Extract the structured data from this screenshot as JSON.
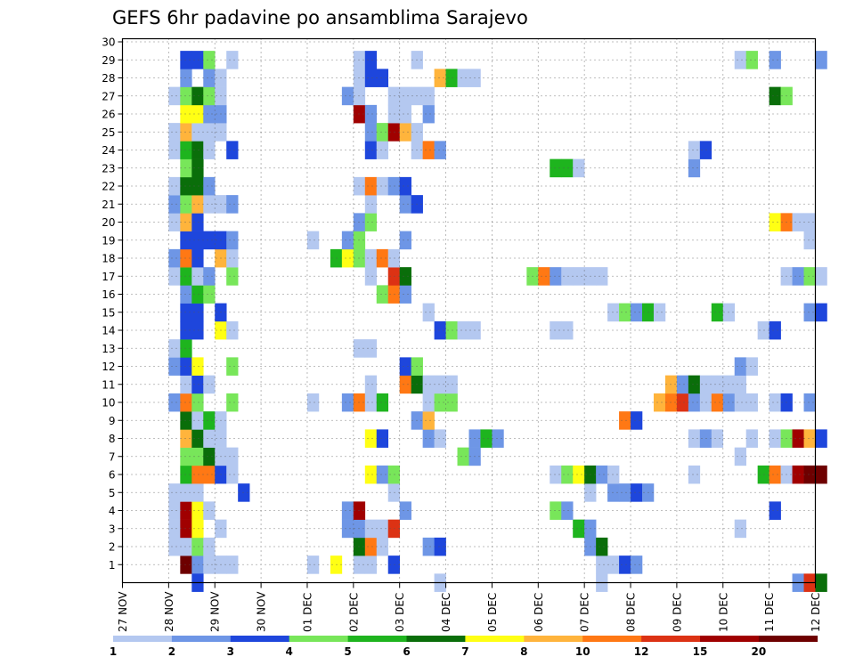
{
  "chart_data": {
    "type": "heatmap",
    "title": "GEFS 6hr padavine po ansamblima Sarajevo",
    "xlabel": "",
    "ylabel": "",
    "x_ticks": [
      "27 NOV",
      "28 NOV",
      "29 NOV",
      "30 NOV",
      "01 DEC",
      "02 DEC",
      "03 DEC",
      "04 DEC",
      "05 DEC",
      "06 DEC",
      "07 DEC",
      "08 DEC",
      "09 DEC",
      "10 DEC",
      "11 DEC",
      "12 DEC"
    ],
    "y_ticks": [
      1,
      2,
      3,
      4,
      5,
      6,
      7,
      8,
      9,
      10,
      11,
      12,
      13,
      14,
      15,
      16,
      17,
      18,
      19,
      20,
      21,
      22,
      23,
      24,
      25,
      26,
      27,
      28,
      29,
      30
    ],
    "x_unit": "6-hour step (0 = 27 NOV 00Z)",
    "x_range": [
      0,
      60
    ],
    "y_range": [
      0,
      31
    ],
    "grid": true,
    "colorbar": {
      "labels": [
        "1",
        "2",
        "3",
        "4",
        "5",
        "6",
        "7",
        "8",
        "10",
        "12",
        "15",
        "20"
      ],
      "colors": [
        "#b4c8f0",
        "#6e96e6",
        "#1e46dc",
        "#78e65a",
        "#1eb41e",
        "#0a6e0a",
        "#ffff14",
        "#ffb43c",
        "#ff7814",
        "#dc3214",
        "#a00000",
        "#6e0000"
      ]
    },
    "cells": [
      [
        5,
        1,
        11
      ],
      [
        6,
        1,
        1
      ],
      [
        7,
        1,
        0
      ],
      [
        8,
        1,
        0
      ],
      [
        9,
        1,
        0
      ],
      [
        16,
        1,
        0
      ],
      [
        18,
        1,
        6
      ],
      [
        20,
        1,
        0
      ],
      [
        21,
        1,
        0
      ],
      [
        23,
        1,
        2
      ],
      [
        41,
        1,
        0
      ],
      [
        42,
        1,
        0
      ],
      [
        43,
        1,
        2
      ],
      [
        44,
        1,
        1
      ],
      [
        4,
        2,
        0
      ],
      [
        5,
        2,
        0
      ],
      [
        6,
        2,
        3
      ],
      [
        7,
        2,
        0
      ],
      [
        20,
        2,
        5
      ],
      [
        21,
        2,
        8
      ],
      [
        22,
        2,
        0
      ],
      [
        26,
        2,
        1
      ],
      [
        27,
        2,
        2
      ],
      [
        40,
        2,
        1
      ],
      [
        41,
        2,
        5
      ],
      [
        4,
        3,
        0
      ],
      [
        5,
        3,
        10
      ],
      [
        6,
        3,
        6
      ],
      [
        8,
        3,
        0
      ],
      [
        19,
        3,
        1
      ],
      [
        20,
        3,
        1
      ],
      [
        21,
        3,
        0
      ],
      [
        22,
        3,
        0
      ],
      [
        23,
        3,
        9
      ],
      [
        39,
        3,
        4
      ],
      [
        40,
        3,
        1
      ],
      [
        53,
        3,
        0
      ],
      [
        4,
        4,
        0
      ],
      [
        5,
        4,
        10
      ],
      [
        6,
        4,
        6
      ],
      [
        7,
        4,
        0
      ],
      [
        19,
        4,
        1
      ],
      [
        20,
        4,
        10
      ],
      [
        24,
        4,
        1
      ],
      [
        37,
        4,
        3
      ],
      [
        38,
        4,
        1
      ],
      [
        56,
        4,
        2
      ],
      [
        4,
        5,
        0
      ],
      [
        5,
        5,
        0
      ],
      [
        6,
        5,
        0
      ],
      [
        10,
        5,
        2
      ],
      [
        23,
        5,
        0
      ],
      [
        40,
        5,
        0
      ],
      [
        42,
        5,
        1
      ],
      [
        43,
        5,
        1
      ],
      [
        44,
        5,
        2
      ],
      [
        45,
        5,
        1
      ],
      [
        5,
        6,
        4
      ],
      [
        6,
        6,
        8
      ],
      [
        7,
        6,
        8
      ],
      [
        8,
        6,
        2
      ],
      [
        9,
        6,
        0
      ],
      [
        21,
        6,
        6
      ],
      [
        22,
        6,
        1
      ],
      [
        23,
        6,
        3
      ],
      [
        37,
        6,
        0
      ],
      [
        38,
        6,
        3
      ],
      [
        39,
        6,
        6
      ],
      [
        40,
        6,
        5
      ],
      [
        41,
        6,
        1
      ],
      [
        42,
        6,
        0
      ],
      [
        49,
        6,
        0
      ],
      [
        55,
        6,
        4
      ],
      [
        56,
        6,
        8
      ],
      [
        57,
        6,
        0
      ],
      [
        58,
        6,
        10
      ],
      [
        59,
        6,
        11
      ],
      [
        60,
        6,
        11
      ],
      [
        5,
        7,
        3
      ],
      [
        6,
        7,
        3
      ],
      [
        7,
        7,
        5
      ],
      [
        8,
        7,
        0
      ],
      [
        9,
        7,
        0
      ],
      [
        29,
        7,
        3
      ],
      [
        30,
        7,
        1
      ],
      [
        53,
        7,
        0
      ],
      [
        5,
        8,
        7
      ],
      [
        6,
        8,
        5
      ],
      [
        7,
        8,
        0
      ],
      [
        8,
        8,
        0
      ],
      [
        21,
        8,
        6
      ],
      [
        22,
        8,
        2
      ],
      [
        26,
        8,
        1
      ],
      [
        27,
        8,
        0
      ],
      [
        30,
        8,
        1
      ],
      [
        31,
        8,
        4
      ],
      [
        32,
        8,
        1
      ],
      [
        49,
        8,
        0
      ],
      [
        50,
        8,
        1
      ],
      [
        51,
        8,
        0
      ],
      [
        54,
        8,
        0
      ],
      [
        56,
        8,
        0
      ],
      [
        57,
        8,
        3
      ],
      [
        58,
        8,
        10
      ],
      [
        59,
        8,
        7
      ],
      [
        60,
        8,
        2
      ],
      [
        5,
        9,
        5
      ],
      [
        6,
        9,
        0
      ],
      [
        7,
        9,
        4
      ],
      [
        8,
        9,
        0
      ],
      [
        25,
        9,
        1
      ],
      [
        26,
        9,
        7
      ],
      [
        43,
        9,
        8
      ],
      [
        44,
        9,
        2
      ],
      [
        4,
        10,
        1
      ],
      [
        5,
        10,
        8
      ],
      [
        6,
        10,
        3
      ],
      [
        9,
        10,
        3
      ],
      [
        16,
        10,
        0
      ],
      [
        19,
        10,
        1
      ],
      [
        20,
        10,
        8
      ],
      [
        21,
        10,
        0
      ],
      [
        22,
        10,
        4
      ],
      [
        26,
        10,
        0
      ],
      [
        27,
        10,
        3
      ],
      [
        28,
        10,
        3
      ],
      [
        46,
        10,
        7
      ],
      [
        47,
        10,
        8
      ],
      [
        48,
        10,
        9
      ],
      [
        49,
        10,
        1
      ],
      [
        50,
        10,
        0
      ],
      [
        51,
        10,
        8
      ],
      [
        52,
        10,
        1
      ],
      [
        53,
        10,
        0
      ],
      [
        54,
        10,
        0
      ],
      [
        56,
        10,
        0
      ],
      [
        57,
        10,
        2
      ],
      [
        59,
        10,
        1
      ],
      [
        5,
        11,
        0
      ],
      [
        6,
        11,
        2
      ],
      [
        7,
        11,
        0
      ],
      [
        21,
        11,
        0
      ],
      [
        24,
        11,
        8
      ],
      [
        25,
        11,
        5
      ],
      [
        26,
        11,
        0
      ],
      [
        27,
        11,
        0
      ],
      [
        28,
        11,
        0
      ],
      [
        47,
        11,
        7
      ],
      [
        48,
        11,
        1
      ],
      [
        49,
        11,
        5
      ],
      [
        50,
        11,
        0
      ],
      [
        51,
        11,
        0
      ],
      [
        52,
        11,
        0
      ],
      [
        53,
        11,
        0
      ],
      [
        4,
        12,
        1
      ],
      [
        5,
        12,
        2
      ],
      [
        6,
        12,
        6
      ],
      [
        9,
        12,
        3
      ],
      [
        24,
        12,
        2
      ],
      [
        25,
        12,
        3
      ],
      [
        53,
        12,
        1
      ],
      [
        54,
        12,
        0
      ],
      [
        4,
        13,
        0
      ],
      [
        5,
        13,
        4
      ],
      [
        20,
        13,
        0
      ],
      [
        21,
        13,
        0
      ],
      [
        5,
        14,
        2
      ],
      [
        6,
        14,
        2
      ],
      [
        8,
        14,
        6
      ],
      [
        9,
        14,
        0
      ],
      [
        27,
        14,
        2
      ],
      [
        28,
        14,
        3
      ],
      [
        29,
        14,
        0
      ],
      [
        30,
        14,
        0
      ],
      [
        37,
        14,
        0
      ],
      [
        38,
        14,
        0
      ],
      [
        55,
        14,
        0
      ],
      [
        56,
        14,
        2
      ],
      [
        5,
        15,
        2
      ],
      [
        6,
        15,
        2
      ],
      [
        8,
        15,
        2
      ],
      [
        26,
        15,
        0
      ],
      [
        42,
        15,
        0
      ],
      [
        43,
        15,
        3
      ],
      [
        44,
        15,
        1
      ],
      [
        45,
        15,
        4
      ],
      [
        46,
        15,
        0
      ],
      [
        51,
        15,
        4
      ],
      [
        52,
        15,
        0
      ],
      [
        59,
        15,
        1
      ],
      [
        60,
        15,
        2
      ],
      [
        5,
        16,
        1
      ],
      [
        6,
        16,
        4
      ],
      [
        7,
        16,
        3
      ],
      [
        22,
        16,
        3
      ],
      [
        23,
        16,
        8
      ],
      [
        24,
        16,
        1
      ],
      [
        4,
        17,
        0
      ],
      [
        5,
        17,
        4
      ],
      [
        6,
        17,
        0
      ],
      [
        7,
        17,
        1
      ],
      [
        9,
        17,
        3
      ],
      [
        21,
        17,
        0
      ],
      [
        23,
        17,
        9
      ],
      [
        24,
        17,
        5
      ],
      [
        35,
        17,
        3
      ],
      [
        36,
        17,
        8
      ],
      [
        37,
        17,
        1
      ],
      [
        38,
        17,
        0
      ],
      [
        39,
        17,
        0
      ],
      [
        40,
        17,
        0
      ],
      [
        41,
        17,
        0
      ],
      [
        57,
        17,
        0
      ],
      [
        58,
        17,
        1
      ],
      [
        59,
        17,
        3
      ],
      [
        60,
        17,
        0
      ],
      [
        4,
        18,
        1
      ],
      [
        5,
        18,
        8
      ],
      [
        6,
        18,
        2
      ],
      [
        8,
        18,
        7
      ],
      [
        9,
        18,
        0
      ],
      [
        18,
        18,
        4
      ],
      [
        19,
        18,
        6
      ],
      [
        20,
        18,
        3
      ],
      [
        21,
        18,
        0
      ],
      [
        22,
        18,
        8
      ],
      [
        23,
        18,
        0
      ],
      [
        5,
        19,
        2
      ],
      [
        6,
        19,
        2
      ],
      [
        7,
        19,
        2
      ],
      [
        8,
        19,
        2
      ],
      [
        9,
        19,
        1
      ],
      [
        16,
        19,
        0
      ],
      [
        19,
        19,
        1
      ],
      [
        20,
        19,
        3
      ],
      [
        24,
        19,
        1
      ],
      [
        59,
        19,
        0
      ],
      [
        4,
        20,
        0
      ],
      [
        5,
        20,
        7
      ],
      [
        6,
        20,
        2
      ],
      [
        20,
        20,
        1
      ],
      [
        21,
        20,
        3
      ],
      [
        56,
        20,
        6
      ],
      [
        57,
        20,
        8
      ],
      [
        58,
        20,
        0
      ],
      [
        59,
        20,
        0
      ],
      [
        4,
        21,
        1
      ],
      [
        5,
        21,
        3
      ],
      [
        6,
        21,
        7
      ],
      [
        7,
        21,
        0
      ],
      [
        8,
        21,
        0
      ],
      [
        9,
        21,
        1
      ],
      [
        21,
        21,
        0
      ],
      [
        24,
        21,
        1
      ],
      [
        25,
        21,
        2
      ],
      [
        4,
        22,
        0
      ],
      [
        5,
        22,
        5
      ],
      [
        6,
        22,
        5
      ],
      [
        7,
        22,
        1
      ],
      [
        20,
        22,
        0
      ],
      [
        21,
        22,
        8
      ],
      [
        22,
        22,
        0
      ],
      [
        23,
        22,
        1
      ],
      [
        24,
        22,
        2
      ],
      [
        5,
        23,
        3
      ],
      [
        6,
        23,
        5
      ],
      [
        37,
        23,
        4
      ],
      [
        38,
        23,
        4
      ],
      [
        39,
        23,
        0
      ],
      [
        49,
        23,
        1
      ],
      [
        4,
        24,
        0
      ],
      [
        5,
        24,
        4
      ],
      [
        6,
        24,
        5
      ],
      [
        7,
        24,
        0
      ],
      [
        9,
        24,
        2
      ],
      [
        21,
        24,
        2
      ],
      [
        22,
        24,
        0
      ],
      [
        25,
        24,
        0
      ],
      [
        26,
        24,
        8
      ],
      [
        27,
        24,
        1
      ],
      [
        49,
        24,
        0
      ],
      [
        50,
        24,
        2
      ],
      [
        4,
        25,
        0
      ],
      [
        5,
        25,
        7
      ],
      [
        6,
        25,
        0
      ],
      [
        7,
        25,
        0
      ],
      [
        8,
        25,
        0
      ],
      [
        21,
        25,
        1
      ],
      [
        22,
        25,
        3
      ],
      [
        23,
        25,
        10
      ],
      [
        24,
        25,
        7
      ],
      [
        25,
        25,
        0
      ],
      [
        5,
        26,
        6
      ],
      [
        6,
        26,
        6
      ],
      [
        7,
        26,
        1
      ],
      [
        8,
        26,
        1
      ],
      [
        20,
        26,
        10
      ],
      [
        21,
        26,
        1
      ],
      [
        23,
        26,
        0
      ],
      [
        24,
        26,
        0
      ],
      [
        26,
        26,
        1
      ],
      [
        4,
        27,
        0
      ],
      [
        5,
        27,
        3
      ],
      [
        6,
        27,
        5
      ],
      [
        7,
        27,
        3
      ],
      [
        8,
        27,
        0
      ],
      [
        19,
        27,
        1
      ],
      [
        20,
        27,
        0
      ],
      [
        23,
        27,
        0
      ],
      [
        24,
        27,
        0
      ],
      [
        25,
        27,
        0
      ],
      [
        26,
        27,
        0
      ],
      [
        56,
        27,
        5
      ],
      [
        57,
        27,
        3
      ],
      [
        5,
        28,
        1
      ],
      [
        7,
        28,
        1
      ],
      [
        8,
        28,
        0
      ],
      [
        20,
        28,
        0
      ],
      [
        21,
        28,
        2
      ],
      [
        22,
        28,
        2
      ],
      [
        27,
        28,
        7
      ],
      [
        28,
        28,
        4
      ],
      [
        29,
        28,
        0
      ],
      [
        30,
        28,
        0
      ],
      [
        5,
        29,
        2
      ],
      [
        6,
        29,
        2
      ],
      [
        7,
        29,
        3
      ],
      [
        9,
        29,
        0
      ],
      [
        20,
        29,
        0
      ],
      [
        21,
        29,
        2
      ],
      [
        25,
        29,
        0
      ],
      [
        53,
        29,
        0
      ],
      [
        54,
        29,
        3
      ],
      [
        56,
        29,
        1
      ],
      [
        60,
        29,
        1
      ],
      [
        6,
        0,
        2
      ],
      [
        27,
        0,
        0
      ],
      [
        41,
        0,
        0
      ],
      [
        58,
        0,
        1
      ],
      [
        59,
        0,
        9
      ],
      [
        60,
        0,
        5
      ]
    ]
  }
}
